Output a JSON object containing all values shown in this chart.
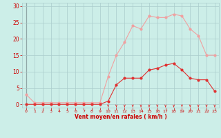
{
  "hours": [
    0,
    1,
    2,
    3,
    4,
    5,
    6,
    7,
    8,
    9,
    10,
    11,
    12,
    13,
    14,
    15,
    16,
    17,
    18,
    19,
    20,
    21,
    22,
    23
  ],
  "wind_avg": [
    0,
    0,
    0,
    0,
    0,
    0,
    0,
    0,
    0,
    0,
    1,
    6,
    8,
    8,
    8,
    10.5,
    11,
    12,
    12.5,
    10.5,
    8,
    7.5,
    7.5,
    4
  ],
  "wind_gust": [
    3,
    0.5,
    0.5,
    0.5,
    0.5,
    0.5,
    0.5,
    0.5,
    0.5,
    0.5,
    8.5,
    15,
    19,
    24,
    23,
    27,
    26.5,
    26.5,
    27.5,
    27,
    23,
    21,
    15,
    15
  ],
  "avg_color": "#e03030",
  "gust_color": "#f0a0a0",
  "background_color": "#cceee8",
  "grid_color": "#aacccc",
  "xlabel": "Vent moyen/en rafales ( km/h )",
  "xlabel_color": "#cc0000",
  "tick_color": "#cc0000",
  "yticks": [
    0,
    5,
    10,
    15,
    20,
    25,
    30
  ],
  "ylim": [
    -1,
    31
  ],
  "xlim": [
    -0.5,
    23.5
  ],
  "arrow_hours": [
    10,
    11,
    12,
    13,
    14,
    15,
    16,
    17,
    18,
    19,
    20,
    21,
    22,
    23
  ]
}
